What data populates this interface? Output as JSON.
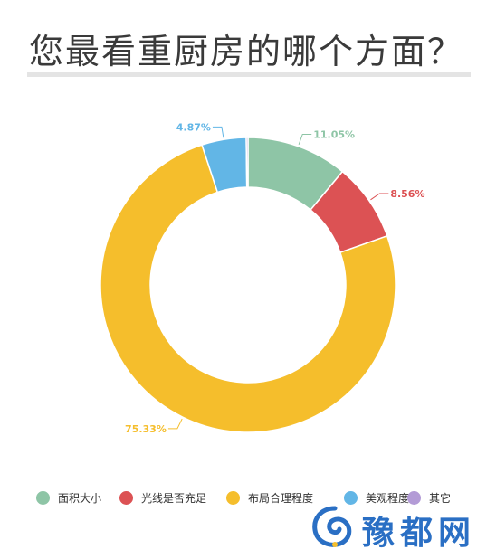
{
  "title": "您最看重厨房的哪个方面？",
  "chart_data": {
    "type": "pie",
    "style": "donut",
    "categories": [
      "面积大小",
      "光线是否充足",
      "布局合理程度",
      "美观程度",
      "其它"
    ],
    "values": [
      11.05,
      8.56,
      75.33,
      4.87,
      0.19
    ],
    "labels": [
      "11.05%",
      "8.56%",
      "75.33%",
      "4.87%",
      ""
    ],
    "colors": [
      "#8ec5a6",
      "#dc5254",
      "#f5be2c",
      "#62b6e6",
      "#b39bd6"
    ],
    "start": "top",
    "direction": "clockwise",
    "legend": "bottom"
  },
  "watermark": {
    "text": "豫都网",
    "color": "#2a6fc4"
  }
}
